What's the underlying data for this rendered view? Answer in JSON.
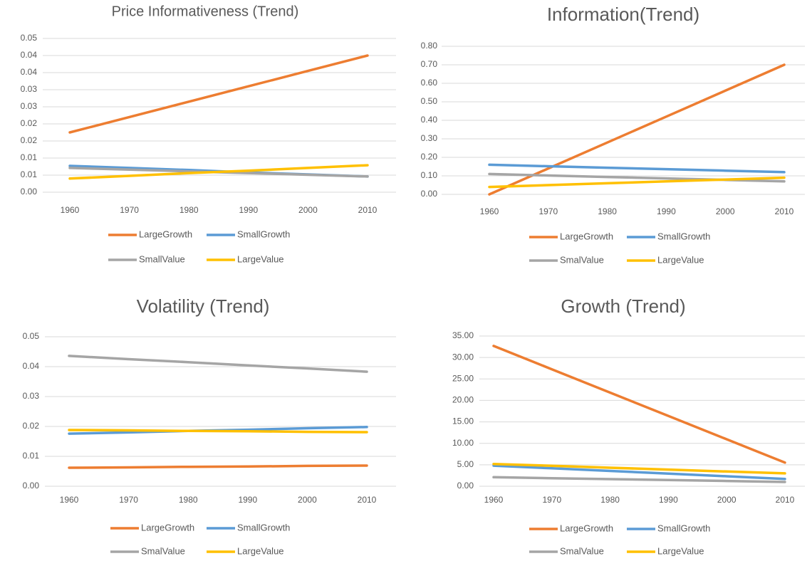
{
  "chart_data": [
    {
      "type": "line",
      "title": "Price Informativeness (Trend)",
      "categories": [
        "1960",
        "1970",
        "1980",
        "1990",
        "2000",
        "2010"
      ],
      "ylim": [
        0,
        0.045
      ],
      "yticks": [
        {
          "value": 0,
          "label": "0.00"
        },
        {
          "value": 0.005,
          "label": "0.01"
        },
        {
          "value": 0.01,
          "label": "0.01"
        },
        {
          "value": 0.015,
          "label": "0.02"
        },
        {
          "value": 0.02,
          "label": "0.02"
        },
        {
          "value": 0.025,
          "label": "0.03"
        },
        {
          "value": 0.03,
          "label": "0.03"
        },
        {
          "value": 0.035,
          "label": "0.04"
        },
        {
          "value": 0.04,
          "label": "0.04"
        },
        {
          "value": 0.045,
          "label": "0.05"
        }
      ],
      "grid": true,
      "series": [
        {
          "name": "LargeGrowth",
          "color": "#ed7d31",
          "values": [
            0.0175,
            0.022,
            0.0265,
            0.031,
            0.0355,
            0.04
          ]
        },
        {
          "name": "SmallGrowth",
          "color": "#5b9bd5",
          "values": [
            0.0077,
            0.0071,
            0.0065,
            0.0058,
            0.0052,
            0.0046
          ]
        },
        {
          "name": "SmallValue",
          "color": "#a5a5a5",
          "values": [
            0.0071,
            0.0066,
            0.0061,
            0.0056,
            0.0051,
            0.0046
          ]
        },
        {
          "name": "LargeValue",
          "color": "#ffc000",
          "values": [
            0.004,
            0.0048,
            0.0056,
            0.0063,
            0.0071,
            0.0079
          ]
        }
      ]
    },
    {
      "type": "line",
      "title": "Information(Trend)",
      "categories": [
        "1960",
        "1970",
        "1980",
        "1990",
        "2000",
        "2010"
      ],
      "ylim": [
        0,
        0.8
      ],
      "yticks": [
        {
          "value": 0,
          "label": "0.00"
        },
        {
          "value": 0.1,
          "label": "0.10"
        },
        {
          "value": 0.2,
          "label": "0.20"
        },
        {
          "value": 0.3,
          "label": "0.30"
        },
        {
          "value": 0.4,
          "label": "0.40"
        },
        {
          "value": 0.5,
          "label": "0.50"
        },
        {
          "value": 0.6,
          "label": "0.60"
        },
        {
          "value": 0.7,
          "label": "0.70"
        },
        {
          "value": 0.8,
          "label": "0.80"
        }
      ],
      "grid": true,
      "series": [
        {
          "name": "LargeGrowth",
          "color": "#ed7d31",
          "values": [
            0,
            0.14,
            0.28,
            0.42,
            0.56,
            0.7
          ]
        },
        {
          "name": "SmallGrowth",
          "color": "#5b9bd5",
          "values": [
            0.16,
            0.152,
            0.144,
            0.136,
            0.128,
            0.12
          ]
        },
        {
          "name": "SmalValue",
          "color": "#a5a5a5",
          "values": [
            0.11,
            0.102,
            0.094,
            0.086,
            0.078,
            0.07
          ]
        },
        {
          "name": "LargeValue",
          "color": "#ffc000",
          "values": [
            0.04,
            0.05,
            0.06,
            0.07,
            0.08,
            0.09
          ]
        }
      ]
    },
    {
      "type": "line",
      "title": "Volatility (Trend)",
      "categories": [
        "1960",
        "1970",
        "1980",
        "1990",
        "2000",
        "2010"
      ],
      "ylim": [
        0,
        0.05
      ],
      "yticks": [
        {
          "value": 0,
          "label": "0.00"
        },
        0.01,
        0.02,
        0.03,
        0.04,
        0.05
      ],
      "grid": true,
      "series": [
        {
          "name": "LargeGrowth",
          "color": "#ed7d31",
          "values": [
            0.0062,
            0.0063,
            0.0065,
            0.0066,
            0.0068,
            0.0069
          ]
        },
        {
          "name": "SmallGrowth",
          "color": "#5b9bd5",
          "values": [
            0.0176,
            0.018,
            0.0185,
            0.0189,
            0.0194,
            0.0198
          ]
        },
        {
          "name": "SmalValue",
          "color": "#a5a5a5",
          "values": [
            0.0436,
            0.0425,
            0.0415,
            0.0404,
            0.0394,
            0.0383
          ]
        },
        {
          "name": "LargeValue",
          "color": "#ffc000",
          "values": [
            0.0188,
            0.0187,
            0.0185,
            0.0184,
            0.0182,
            0.0181
          ]
        }
      ]
    },
    {
      "type": "line",
      "title": "Growth (Trend)",
      "categories": [
        "1960",
        "1970",
        "1980",
        "1990",
        "2000",
        "2010"
      ],
      "ylim": [
        0,
        35
      ],
      "yticks": [
        {
          "value": 0,
          "label": "0.00"
        },
        {
          "value": 5,
          "label": "5.00"
        },
        {
          "value": 10,
          "label": "10.00"
        },
        {
          "value": 15,
          "label": "15.00"
        },
        {
          "value": 20,
          "label": "20.00"
        },
        {
          "value": 25,
          "label": "25.00"
        },
        {
          "value": 30,
          "label": "30.00"
        },
        {
          "value": 35,
          "label": "35.00"
        }
      ],
      "grid": true,
      "series": [
        {
          "name": "LargeGrowth",
          "color": "#ed7d31",
          "values": [
            32.7,
            27.26,
            21.82,
            16.38,
            10.94,
            5.5
          ]
        },
        {
          "name": "SmallGrowth",
          "color": "#5b9bd5",
          "values": [
            4.8,
            4.18,
            3.56,
            2.94,
            2.32,
            1.7
          ]
        },
        {
          "name": "SmalValue",
          "color": "#a5a5a5",
          "values": [
            2.1,
            1.88,
            1.66,
            1.44,
            1.22,
            1.0
          ]
        },
        {
          "name": "LargeValue",
          "color": "#ffc000",
          "values": [
            5.2,
            4.76,
            4.32,
            3.88,
            3.44,
            3.0
          ]
        }
      ]
    }
  ]
}
